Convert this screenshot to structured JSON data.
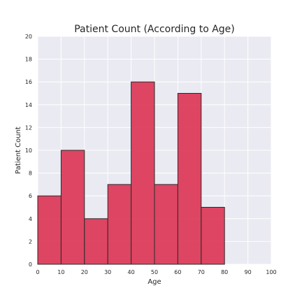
{
  "chart_data": {
    "type": "bar",
    "subtype": "histogram",
    "title": "Patient Count (According to Age)",
    "xlabel": "Age",
    "ylabel": "Patient Count",
    "bins": [
      {
        "start": 0,
        "end": 10,
        "count": 6
      },
      {
        "start": 10,
        "end": 20,
        "count": 10
      },
      {
        "start": 20,
        "end": 30,
        "count": 4
      },
      {
        "start": 30,
        "end": 40,
        "count": 7
      },
      {
        "start": 40,
        "end": 50,
        "count": 16
      },
      {
        "start": 50,
        "end": 60,
        "count": 7
      },
      {
        "start": 60,
        "end": 70,
        "count": 15
      },
      {
        "start": 70,
        "end": 80,
        "count": 5
      }
    ],
    "xlim": [
      0,
      100
    ],
    "ylim": [
      0,
      20
    ],
    "xticks": [
      "0",
      "10",
      "20",
      "30",
      "40",
      "50",
      "60",
      "70",
      "80",
      "90",
      "100"
    ],
    "yticks": [
      "0",
      "2",
      "4",
      "6",
      "8",
      "10",
      "12",
      "14",
      "16",
      "18",
      "20"
    ],
    "grid": true,
    "colors": {
      "bar_fill": "#dc3c5a",
      "bar_edge": "#2b2b2b",
      "plot_background": "#eaeaf2",
      "grid": "#ffffff"
    }
  }
}
